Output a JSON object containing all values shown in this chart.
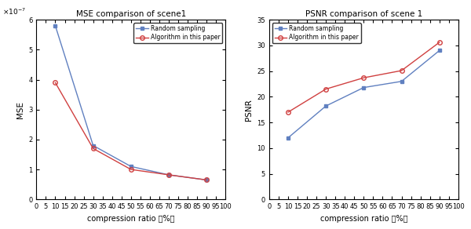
{
  "mse_title": "MSE comparison of scene1",
  "psnr_title": "PSNR comparison of scene 1",
  "x_values": [
    10,
    30,
    50,
    70,
    90
  ],
  "mse_random": [
    5.8e-07,
    1.8e-07,
    1.1e-07,
    8.2e-08,
    6.5e-08
  ],
  "mse_algorithm": [
    3.9e-07,
    1.7e-07,
    1e-07,
    8.2e-08,
    6.5e-08
  ],
  "psnr_random": [
    12.0,
    18.2,
    21.8,
    23.0,
    29.0
  ],
  "psnr_algorithm": [
    17.0,
    21.5,
    23.7,
    25.1,
    30.6
  ],
  "color_random": "#6080c0",
  "color_algorithm": "#d04040",
  "xlabel": "compression ratio （%）",
  "ylabel_mse": "MSE",
  "ylabel_psnr": "PSNR",
  "legend_random": "Random sampling",
  "legend_algorithm": "Algorithm in this paper",
  "mse_ylim": [
    0,
    6e-07
  ],
  "psnr_ylim": [
    0,
    35
  ],
  "xticks": [
    0,
    5,
    10,
    15,
    20,
    25,
    30,
    35,
    40,
    45,
    50,
    55,
    60,
    65,
    70,
    75,
    80,
    85,
    90,
    95,
    100
  ],
  "xtick_labels": [
    "0",
    "5",
    "10",
    "15",
    "20",
    "25",
    "30",
    "35",
    "40",
    "45",
    "50",
    "55",
    "60",
    "65",
    "70",
    "75",
    "80",
    "85",
    "90",
    "95",
    "100"
  ],
  "psnr_yticks": [
    0,
    5,
    10,
    15,
    20,
    25,
    30,
    35
  ],
  "mse_yticks": [
    0,
    1e-07,
    2e-07,
    3e-07,
    4e-07,
    5e-07,
    6e-07
  ],
  "mse_ytick_labels": [
    "0",
    "1",
    "2",
    "3",
    "4",
    "5",
    "6"
  ]
}
